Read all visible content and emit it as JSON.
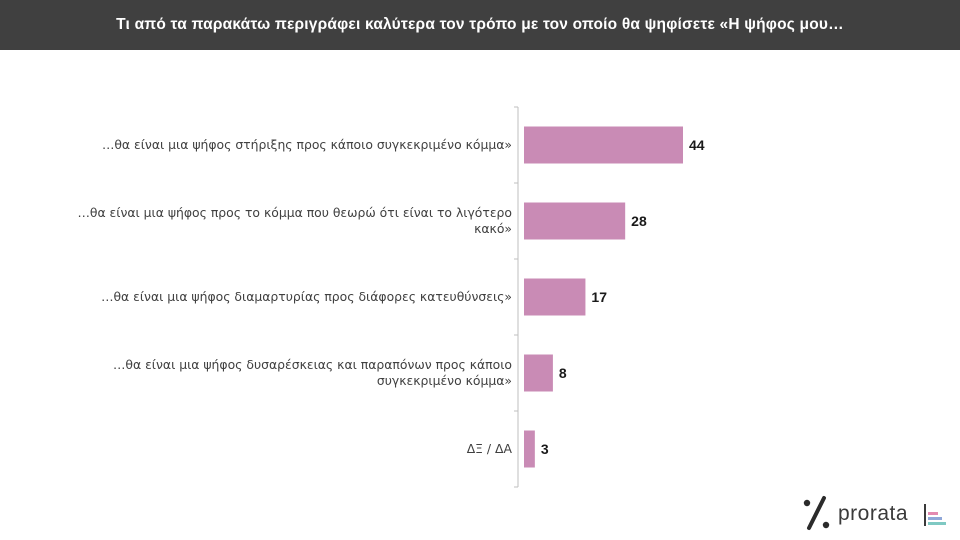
{
  "header": {
    "title": "Τι από τα παρακάτω περιγράφει καλύτερα τον τρόπο με τον οποίο θα ψηφίσετε «Η ψήφος μου…"
  },
  "chart_data": {
    "type": "bar",
    "orientation": "horizontal",
    "categories": [
      [
        "…θα είναι μια ψήφος στήριξης προς κάποιο συγκεκριμένο κόμμα»"
      ],
      [
        "…θα είναι μια ψήφος προς το κόμμα που θεωρώ ότι είναι το λιγότερο",
        "κακό»"
      ],
      [
        "…θα είναι μια ψήφος διαμαρτυρίας προς διάφορες κατευθύνσεις»"
      ],
      [
        "…θα είναι μια ψήφος δυσαρέσκειας και παραπόνων προς κάποιο",
        "συγκεκριμένο κόμμα»"
      ],
      [
        "ΔΞ / ΔΑ"
      ]
    ],
    "values": [
      44,
      28,
      17,
      8,
      3
    ],
    "bar_color": "#c98bb5",
    "xlim": [
      0,
      100
    ],
    "gridlines": false,
    "legend": "none"
  },
  "brand": {
    "name": "prorata",
    "mark_color": "#2b2b2b",
    "bar_colors": [
      "#e38ab0",
      "#8fa7d8",
      "#7fc9c3"
    ]
  }
}
